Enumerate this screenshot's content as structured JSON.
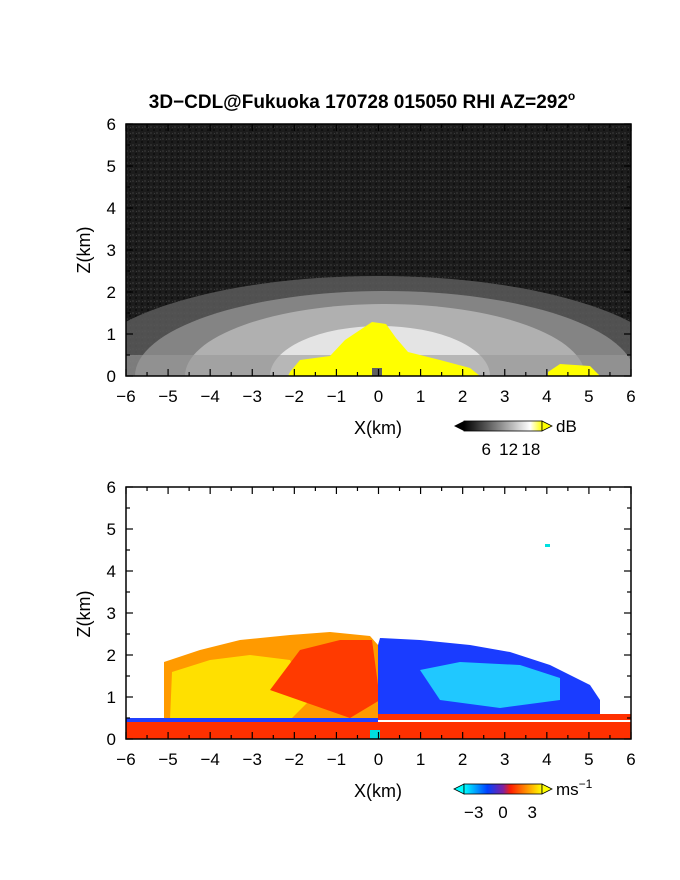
{
  "title_main": "3D−CDL@Fukuoka 170728 015050 RHI AZ=292",
  "title_degree": "o",
  "chart_data": [
    {
      "type": "heatmap",
      "panel": "backscatter-intensity",
      "xlabel": "X(km)",
      "ylabel": "Z(km)",
      "xlim": [
        -6,
        6
      ],
      "ylim": [
        0,
        6
      ],
      "xticks": [
        "−6",
        "−5",
        "−4",
        "−3",
        "−2",
        "−1",
        "0",
        "1",
        "2",
        "3",
        "4",
        "5",
        "6"
      ],
      "yticks": [
        "0",
        "1",
        "2",
        "3",
        "4",
        "5",
        "6"
      ],
      "colorbar": {
        "unit": "dB",
        "ticks": [
          "6",
          "12",
          "18"
        ],
        "range": [
          0,
          21
        ],
        "colors": [
          "#000000",
          "#ffffff",
          "#ffff00"
        ]
      },
      "features": {
        "aerosol_layer_top_km": 2.2,
        "saturated_plume_top_km": 1.2,
        "colors": {
          "noise": "#1e1e1e",
          "layer": "#b4b4b4",
          "saturated": "#ffff00"
        }
      }
    },
    {
      "type": "heatmap",
      "panel": "radial-velocity",
      "xlabel": "X(km)",
      "ylabel": "Z(km)",
      "xlim": [
        -6,
        6
      ],
      "ylim": [
        0,
        6
      ],
      "xticks": [
        "−6",
        "−5",
        "−4",
        "−3",
        "−2",
        "−1",
        "0",
        "1",
        "2",
        "3",
        "4",
        "5",
        "6"
      ],
      "yticks": [
        "0",
        "1",
        "2",
        "3",
        "4",
        "5",
        "6"
      ],
      "colorbar": {
        "unit_base": "ms",
        "unit_exp": "−1",
        "ticks": [
          "−3",
          "0",
          "3"
        ],
        "range": [
          -4,
          4
        ],
        "colors": [
          "#00ffff",
          "#0040ff",
          "#ff2000",
          "#ffff00"
        ]
      },
      "features": {
        "echo_top_km": 2.3,
        "negative_side": "x > 0",
        "positive_side": "x < 0"
      }
    }
  ]
}
